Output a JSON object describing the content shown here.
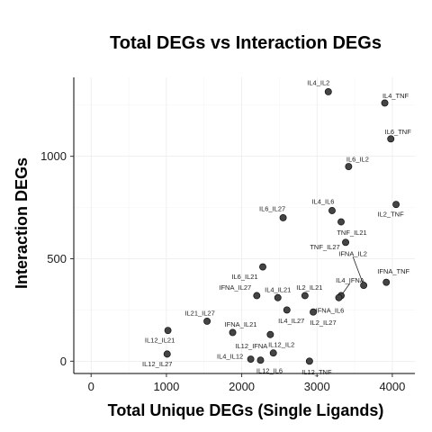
{
  "chart_data": {
    "type": "scatter",
    "title": "Total DEGs vs Interaction DEGs",
    "xlabel": "Total Unique DEGs (Single Ligands)",
    "ylabel": "Interaction DEGs",
    "xlim": [
      -230,
      4300
    ],
    "ylim": [
      -60,
      1385
    ],
    "xticks": [
      0,
      1000,
      2000,
      3000,
      4000
    ],
    "yticks": [
      0,
      500,
      1000
    ],
    "xtick_labels": [
      "0",
      "1000",
      "2000",
      "3000",
      "4000"
    ],
    "ytick_labels": [
      "0",
      "500",
      "1000"
    ],
    "grid": true,
    "point_color": "#444444",
    "points": [
      {
        "label": "IL4_IL2",
        "x": 3150,
        "y": 1315
      },
      {
        "label": "IL4_TNF",
        "x": 3900,
        "y": 1260
      },
      {
        "label": "IL6_TNF",
        "x": 3980,
        "y": 1085
      },
      {
        "label": "IL6_IL2",
        "x": 3420,
        "y": 950
      },
      {
        "label": "IL2_TNF",
        "x": 4050,
        "y": 765
      },
      {
        "label": "IL4_IL6",
        "x": 3200,
        "y": 735
      },
      {
        "label": "IL6_IL27",
        "x": 2550,
        "y": 700
      },
      {
        "label": "TNF_IL21",
        "x": 3320,
        "y": 680
      },
      {
        "label": "TNF_IL27",
        "x": 3380,
        "y": 580
      },
      {
        "label": "IL6_IL21",
        "x": 2280,
        "y": 460
      },
      {
        "label": "IFNA_IL2",
        "x": 3620,
        "y": 370
      },
      {
        "label": "IFNA_TNF",
        "x": 3920,
        "y": 385
      },
      {
        "label": "IL4_IFNA",
        "x": 3320,
        "y": 320
      },
      {
        "label": "IFNA_IL6",
        "x": 3290,
        "y": 310
      },
      {
        "label": "IFNA_IL27",
        "x": 2200,
        "y": 320
      },
      {
        "label": "IL4_IL21",
        "x": 2480,
        "y": 310
      },
      {
        "label": "IL2_IL21",
        "x": 2840,
        "y": 320
      },
      {
        "label": "IL4_IL27",
        "x": 2600,
        "y": 250
      },
      {
        "label": "IL2_IL27",
        "x": 2950,
        "y": 240
      },
      {
        "label": "IL21_IL27",
        "x": 1540,
        "y": 195
      },
      {
        "label": "IL12_IL21",
        "x": 1020,
        "y": 150
      },
      {
        "label": "IFNA_IL21",
        "x": 1880,
        "y": 140
      },
      {
        "label": "IL12_IFNA",
        "x": 2380,
        "y": 130
      },
      {
        "label": "IL12_IL2",
        "x": 2420,
        "y": 40
      },
      {
        "label": "IL12_IL27",
        "x": 1010,
        "y": 35
      },
      {
        "label": "IL4_IL12",
        "x": 2120,
        "y": 10
      },
      {
        "label": "IL12_IL6",
        "x": 2250,
        "y": 5
      },
      {
        "label": "IL12_TNF",
        "x": 2900,
        "y": 0
      }
    ]
  }
}
